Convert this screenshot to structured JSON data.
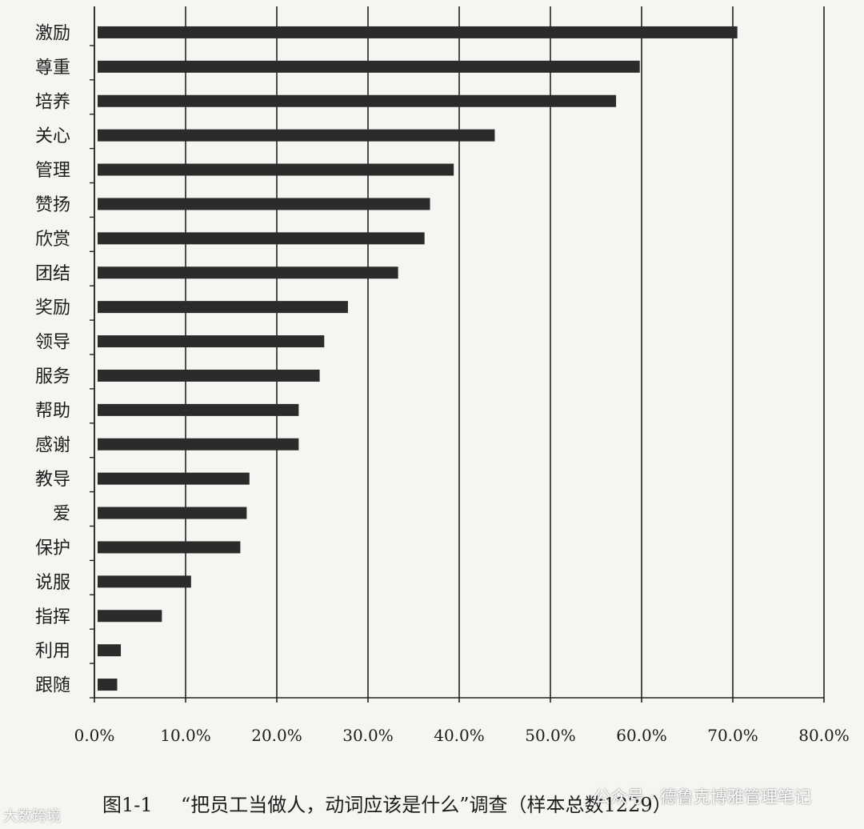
{
  "chart_data": {
    "type": "bar",
    "orientation": "horizontal",
    "categories": [
      "激励",
      "尊重",
      "培养",
      "关心",
      "管理",
      "赞扬",
      "欣赏",
      "团结",
      "奖励",
      "领导",
      "服务",
      "帮助",
      "感谢",
      "教导",
      "爱",
      "保护",
      "说服",
      "指挥",
      "利用",
      "跟随"
    ],
    "values": [
      70.5,
      59.8,
      57.2,
      43.9,
      39.4,
      36.8,
      36.2,
      33.3,
      27.8,
      25.2,
      24.7,
      22.4,
      22.4,
      17.0,
      16.7,
      16.0,
      10.6,
      7.4,
      2.9,
      2.5
    ],
    "xlim": [
      0,
      80
    ],
    "xticks": [
      "0.0%",
      "10.0%",
      "20.0%",
      "30.0%",
      "40.0%",
      "50.0%",
      "60.0%",
      "70.0%",
      "80.0%"
    ],
    "grid": true,
    "bar_color": "#2b2b2b"
  },
  "caption": {
    "figure_label": "图1-1",
    "title": "“把员工当做人，动词应该是什么”调查（样本总数1229）"
  },
  "watermarks": {
    "left": "大数跨境",
    "right": "公众号 · 德鲁克博雅管理笔记"
  }
}
